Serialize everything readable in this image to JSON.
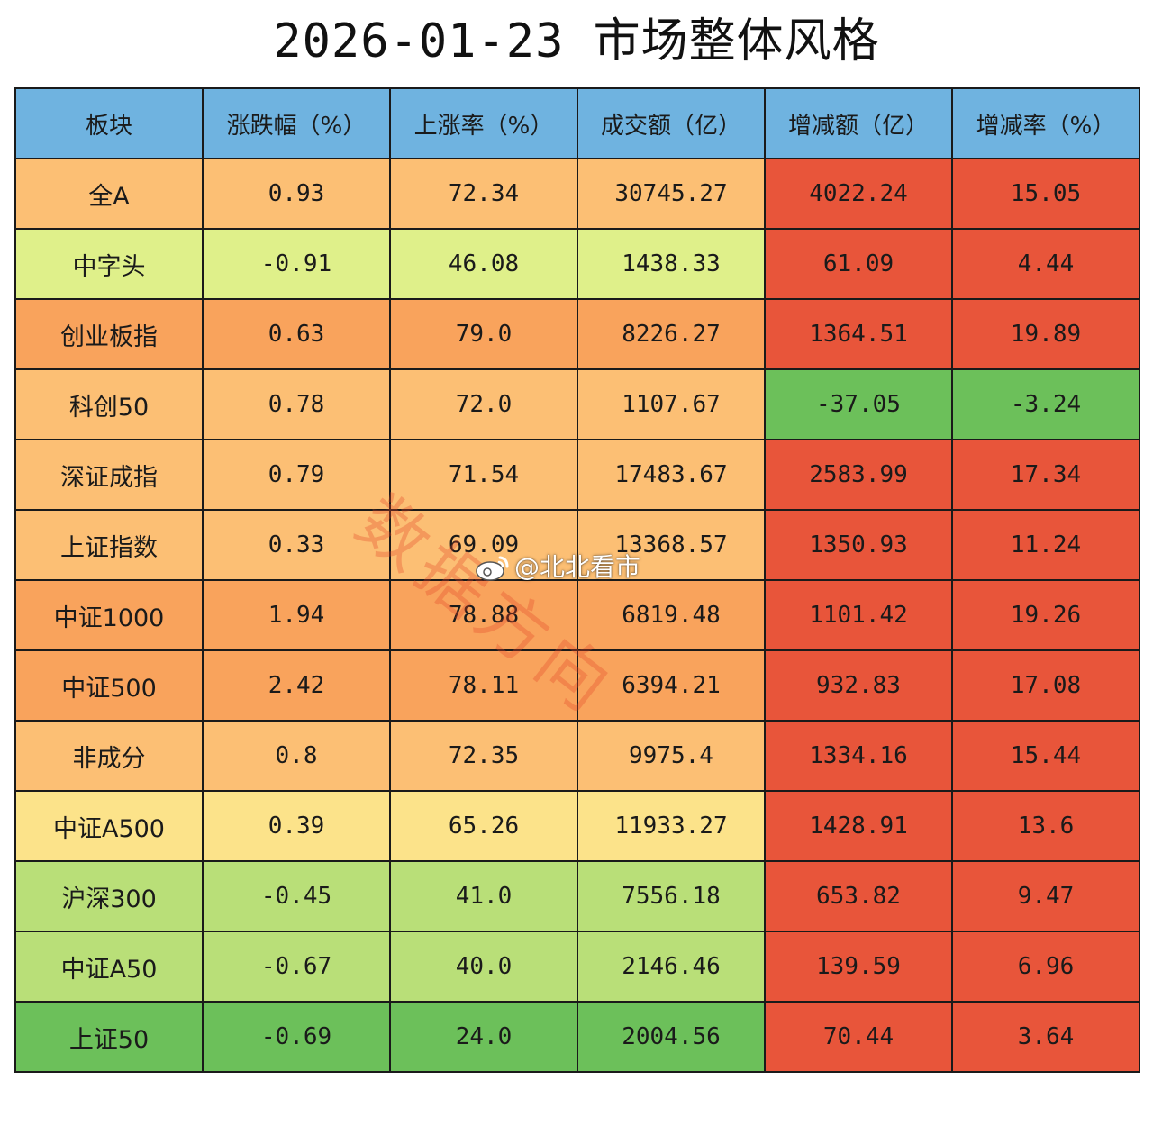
{
  "title": "2026-01-23 市场整体风格",
  "watermark": "数据方向",
  "weibo_handle": "@北北看市",
  "colors": {
    "header": "#6fb3e0",
    "red": "#e8553a",
    "green": "#6cc05a",
    "orange": "#f9a35c",
    "light_orange": "#fcbf74",
    "yellow": "#fce38a",
    "light_green": "#dff08a",
    "mid_green": "#b9df78"
  },
  "chart_data": {
    "type": "table",
    "title": "2026-01-23 市场整体风格",
    "columns": [
      "板块",
      "涨跌幅（%）",
      "上涨率（%）",
      "成交额（亿）",
      "增减额（亿）",
      "增减率（%）"
    ],
    "rows": [
      {
        "name": "全A",
        "change_pct": "0.93",
        "up_ratio": "72.34",
        "turnover": "30745.27",
        "delta": "4022.24",
        "delta_pct": "15.05"
      },
      {
        "name": "中字头",
        "change_pct": "-0.91",
        "up_ratio": "46.08",
        "turnover": "1438.33",
        "delta": "61.09",
        "delta_pct": "4.44"
      },
      {
        "name": "创业板指",
        "change_pct": "0.63",
        "up_ratio": "79.0",
        "turnover": "8226.27",
        "delta": "1364.51",
        "delta_pct": "19.89"
      },
      {
        "name": "科创50",
        "change_pct": "0.78",
        "up_ratio": "72.0",
        "turnover": "1107.67",
        "delta": "-37.05",
        "delta_pct": "-3.24"
      },
      {
        "name": "深证成指",
        "change_pct": "0.79",
        "up_ratio": "71.54",
        "turnover": "17483.67",
        "delta": "2583.99",
        "delta_pct": "17.34"
      },
      {
        "name": "上证指数",
        "change_pct": "0.33",
        "up_ratio": "69.09",
        "turnover": "13368.57",
        "delta": "1350.93",
        "delta_pct": "11.24"
      },
      {
        "name": "中证1000",
        "change_pct": "1.94",
        "up_ratio": "78.88",
        "turnover": "6819.48",
        "delta": "1101.42",
        "delta_pct": "19.26"
      },
      {
        "name": "中证500",
        "change_pct": "2.42",
        "up_ratio": "78.11",
        "turnover": "6394.21",
        "delta": "932.83",
        "delta_pct": "17.08"
      },
      {
        "name": "非成分",
        "change_pct": "0.8",
        "up_ratio": "72.35",
        "turnover": "9975.4",
        "delta": "1334.16",
        "delta_pct": "15.44"
      },
      {
        "name": "中证A500",
        "change_pct": "0.39",
        "up_ratio": "65.26",
        "turnover": "11933.27",
        "delta": "1428.91",
        "delta_pct": "13.6"
      },
      {
        "name": "沪深300",
        "change_pct": "-0.45",
        "up_ratio": "41.0",
        "turnover": "7556.18",
        "delta": "653.82",
        "delta_pct": "9.47"
      },
      {
        "name": "中证A50",
        "change_pct": "-0.67",
        "up_ratio": "40.0",
        "turnover": "2146.46",
        "delta": "139.59",
        "delta_pct": "6.96"
      },
      {
        "name": "上证50",
        "change_pct": "-0.69",
        "up_ratio": "24.0",
        "turnover": "2004.56",
        "delta": "70.44",
        "delta_pct": "3.64"
      }
    ]
  }
}
